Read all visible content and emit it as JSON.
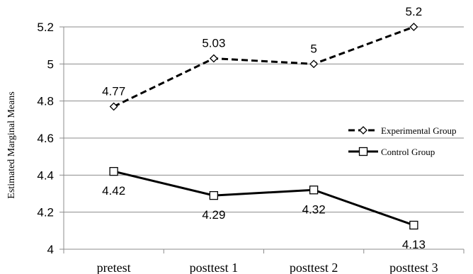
{
  "chart_data": {
    "type": "line",
    "title": "",
    "xlabel": "",
    "ylabel": "Estimated Marginal Means",
    "categories": [
      "pretest",
      "posttest 1",
      "posttest 2",
      "posttest 3"
    ],
    "ylim": [
      4,
      5.2
    ],
    "yticks": [
      "4",
      "4.2",
      "4.4",
      "4.6",
      "4.8",
      "5",
      "5.2"
    ],
    "grid": "horizontal",
    "legend_position": "right",
    "series": [
      {
        "name": "Experimental Group",
        "values": [
          4.77,
          5.03,
          5,
          5.2
        ],
        "labels": [
          "4.77",
          "5.03",
          "5",
          "5.2"
        ],
        "style": "dashed",
        "marker": "diamond",
        "color": "#000000"
      },
      {
        "name": "Control Group",
        "values": [
          4.42,
          4.29,
          4.32,
          4.13
        ],
        "labels": [
          "4.42",
          "4.29",
          "4.32",
          "4.13"
        ],
        "style": "solid",
        "marker": "square",
        "color": "#000000"
      }
    ]
  }
}
